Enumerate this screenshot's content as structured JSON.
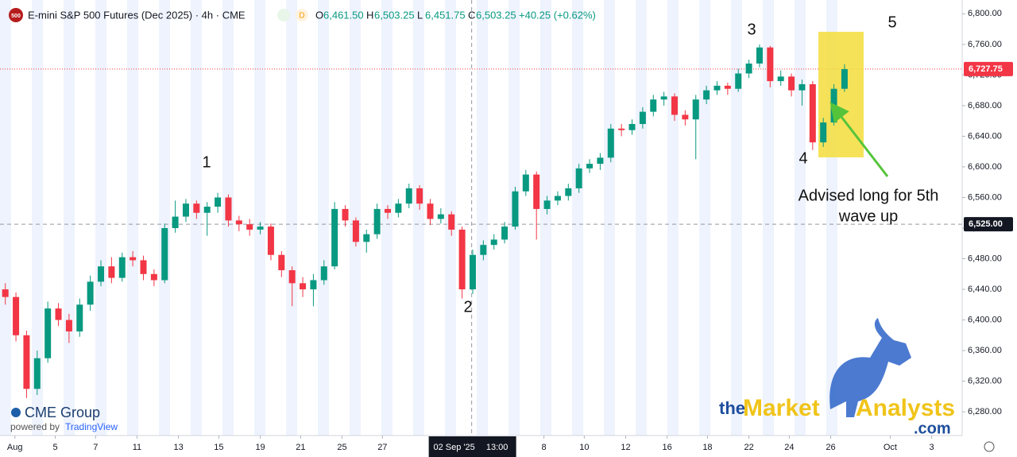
{
  "chart_data": {
    "type": "candlestick",
    "symbol_badge": "500",
    "title": "E-mini S&P 500 Futures (Dec 2025) · 4h · CME",
    "interval_badge": "D",
    "ohlc_header": [
      {
        "key": "O",
        "text": "6,461.50"
      },
      {
        "key": "H",
        "text": "6,503.25"
      },
      {
        "key": "L",
        "text": "6,451.75"
      },
      {
        "key": "C",
        "text": "6,503.25"
      }
    ],
    "change": "+40.25 (+0.62%)",
    "up_color": "#089981",
    "down_color": "#f23645",
    "xlim": [
      -0.5,
      90
    ],
    "ylim": [
      6249,
      6818
    ],
    "yticks": [
      {
        "value": 6280,
        "label": "6,280.00"
      },
      {
        "value": 6320,
        "label": "6,320.00"
      },
      {
        "value": 6360,
        "label": "6,360.00"
      },
      {
        "value": 6400,
        "label": "6,400.00"
      },
      {
        "value": 6440,
        "label": "6,440.00"
      },
      {
        "value": 6480,
        "label": "6,480.00"
      },
      {
        "value": 6520,
        "label": "6,520.00"
      },
      {
        "value": 6560,
        "label": "6,560.00"
      },
      {
        "value": 6600,
        "label": "6,600.00"
      },
      {
        "value": 6640,
        "label": "6,640.00"
      },
      {
        "value": 6680,
        "label": "6,680.00"
      },
      {
        "value": 6720,
        "label": "6,720.00"
      },
      {
        "value": 6760,
        "label": "6,760.00"
      },
      {
        "value": 6800,
        "label": "6,800.00"
      }
    ],
    "xticks": [
      {
        "value": 0.9,
        "label": "Aug"
      },
      {
        "value": 4.7,
        "label": "5"
      },
      {
        "value": 8.5,
        "label": "7"
      },
      {
        "value": 12.4,
        "label": "11"
      },
      {
        "value": 16.3,
        "label": "13"
      },
      {
        "value": 20.1,
        "label": "15"
      },
      {
        "value": 24,
        "label": "19"
      },
      {
        "value": 27.8,
        "label": "21"
      },
      {
        "value": 31.7,
        "label": "25"
      },
      {
        "value": 35.5,
        "label": "27"
      },
      {
        "value": 50.7,
        "label": "8"
      },
      {
        "value": 54.5,
        "label": "10"
      },
      {
        "value": 58.4,
        "label": "12"
      },
      {
        "value": 62.3,
        "label": "16"
      },
      {
        "value": 66.1,
        "label": "18"
      },
      {
        "value": 70,
        "label": "22"
      },
      {
        "value": 73.8,
        "label": "24"
      },
      {
        "value": 77.7,
        "label": "26"
      },
      {
        "value": 83.3,
        "label": "Oct"
      },
      {
        "value": 87.2,
        "label": "3"
      }
    ],
    "crosshair": {
      "x": 43.9,
      "date_label": "02 Sep '25",
      "time_label": "13:00",
      "price": {
        "value": 6525,
        "label": "6,525.00"
      }
    },
    "last_price": {
      "value": 6727.75,
      "label": "6,727.75"
    },
    "open": [
      6440,
      6430,
      6380,
      6310,
      6350,
      6415,
      6400,
      6385,
      6420,
      6450,
      6470,
      6455,
      6482,
      6478,
      6460,
      6452,
      6520,
      6535,
      6552,
      6540,
      6548,
      6560,
      6530,
      6525,
      6518,
      6522,
      6485,
      6465,
      6448,
      6440,
      6452,
      6470,
      6545,
      6530,
      6502,
      6512,
      6545,
      6540,
      6552,
      6572,
      6552,
      6532,
      6538,
      6518,
      6440,
      6485,
      6498,
      6505,
      6522,
      6568,
      6590,
      6545,
      6556,
      6562,
      6572,
      6598,
      6604,
      6612,
      6650,
      6648,
      6656,
      6672,
      6688,
      6692,
      6668,
      6662,
      6688,
      6700,
      6706,
      6702,
      6722,
      6735,
      6756,
      6712,
      6718,
      6700,
      6708,
      6632,
      6658,
      6702
    ],
    "high": [
      6448,
      6436,
      6386,
      6360,
      6424,
      6422,
      6408,
      6428,
      6458,
      6478,
      6482,
      6488,
      6490,
      6484,
      6466,
      6526,
      6556,
      6558,
      6556,
      6554,
      6566,
      6564,
      6536,
      6532,
      6528,
      6526,
      6490,
      6470,
      6456,
      6460,
      6478,
      6554,
      6550,
      6534,
      6518,
      6552,
      6550,
      6558,
      6578,
      6576,
      6558,
      6546,
      6542,
      6522,
      6492,
      6504,
      6512,
      6528,
      6574,
      6596,
      6594,
      6562,
      6568,
      6578,
      6604,
      6610,
      6618,
      6656,
      6656,
      6662,
      6678,
      6694,
      6698,
      6696,
      6674,
      6694,
      6706,
      6712,
      6710,
      6728,
      6740,
      6760,
      6758,
      6726,
      6722,
      6714,
      6712,
      6664,
      6708,
      6734
    ],
    "low": [
      6420,
      6372,
      6298,
      6302,
      6344,
      6392,
      6370,
      6378,
      6412,
      6444,
      6448,
      6450,
      6470,
      6452,
      6444,
      6448,
      6514,
      6528,
      6532,
      6510,
      6540,
      6522,
      6516,
      6510,
      6512,
      6478,
      6456,
      6418,
      6430,
      6418,
      6446,
      6466,
      6522,
      6496,
      6488,
      6506,
      6532,
      6534,
      6546,
      6544,
      6524,
      6526,
      6510,
      6428,
      6434,
      6478,
      6492,
      6500,
      6518,
      6562,
      6505,
      6538,
      6550,
      6556,
      6566,
      6592,
      6596,
      6606,
      6640,
      6642,
      6650,
      6666,
      6680,
      6660,
      6654,
      6610,
      6682,
      6694,
      6694,
      6698,
      6716,
      6730,
      6704,
      6706,
      6692,
      6680,
      6622,
      6626,
      6654,
      6698
    ],
    "close": [
      6430,
      6380,
      6310,
      6350,
      6415,
      6400,
      6385,
      6420,
      6450,
      6470,
      6455,
      6482,
      6478,
      6460,
      6452,
      6520,
      6535,
      6552,
      6540,
      6548,
      6560,
      6530,
      6525,
      6518,
      6522,
      6485,
      6465,
      6448,
      6440,
      6452,
      6470,
      6545,
      6530,
      6502,
      6512,
      6545,
      6540,
      6552,
      6572,
      6552,
      6532,
      6538,
      6518,
      6440,
      6485,
      6498,
      6505,
      6522,
      6568,
      6590,
      6545,
      6556,
      6562,
      6572,
      6598,
      6604,
      6612,
      6650,
      6648,
      6656,
      6672,
      6688,
      6692,
      6668,
      6662,
      6688,
      6700,
      6706,
      6702,
      6722,
      6735,
      6756,
      6712,
      6718,
      6700,
      6708,
      6632,
      6658,
      6702,
      6727.75
    ],
    "wave_labels": [
      "1",
      "2",
      "3",
      "4",
      "5"
    ],
    "annotation": [
      "Advised long for 5th",
      "wave up"
    ],
    "brand": {
      "cme": "CME Group",
      "powered_by": "powered by",
      "tradingview": "TradingView",
      "analysts_the": "the",
      "analysts_market": "Market",
      "analysts_name": "Analysts",
      "analysts_com": ".com"
    }
  }
}
